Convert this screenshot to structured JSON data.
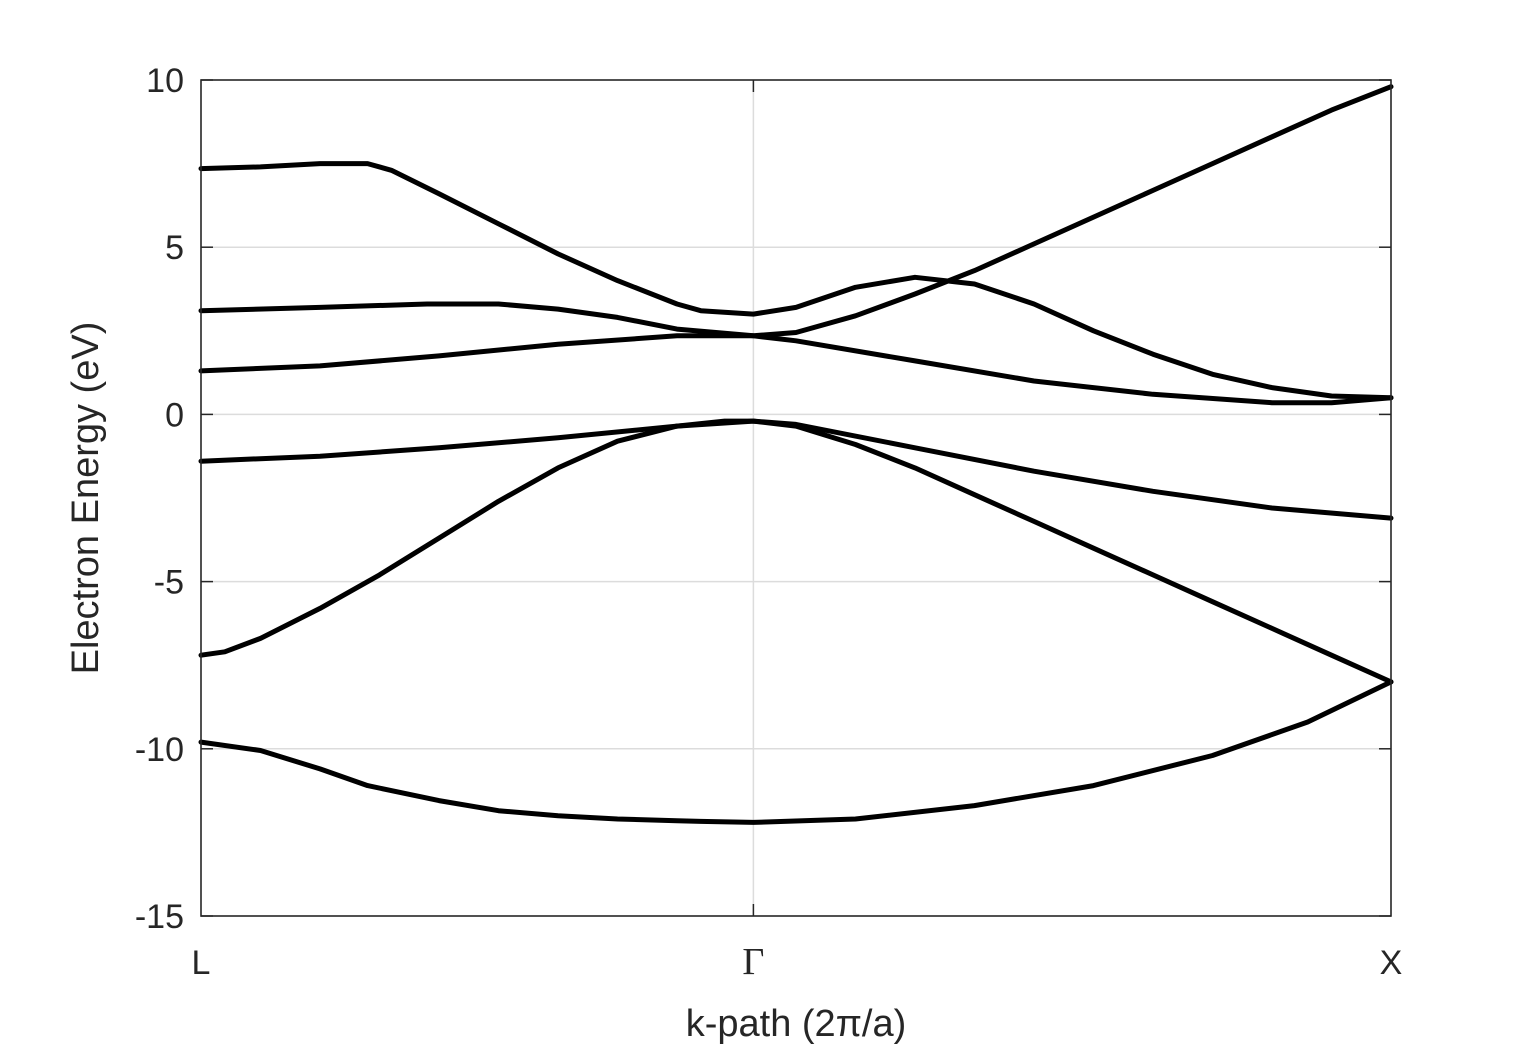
{
  "chart_data": {
    "type": "line",
    "title": "",
    "xlabel": "k-path (2π/a)",
    "ylabel": "Electron Energy (eV)",
    "xlim": [
      0,
      1
    ],
    "ylim": [
      -15,
      10
    ],
    "y_ticks": [
      "10",
      "5",
      "0",
      "-5",
      "-10",
      "-15"
    ],
    "x_ticks": [
      {
        "label": "L",
        "value": 0
      },
      {
        "label": "Γ",
        "value": 0.4642
      },
      {
        "label": "X",
        "value": 1
      }
    ],
    "grid": true,
    "legend": "none",
    "line_color": "#000000",
    "series": [
      {
        "x": [
          0,
          0.05,
          0.1,
          0.14,
          0.2,
          0.25,
          0.3,
          0.35,
          0.4,
          0.42,
          0.4642,
          0.55,
          0.65,
          0.75,
          0.85,
          0.93,
          1.0
        ],
        "y": [
          -9.8,
          -10.05,
          -10.6,
          -11.1,
          -11.55,
          -11.85,
          -12.0,
          -12.1,
          -12.15,
          -12.17,
          -12.2,
          -12.1,
          -11.7,
          -11.1,
          -10.2,
          -9.2,
          -8.0
        ]
      },
      {
        "x": [
          0,
          0.02,
          0.05,
          0.1,
          0.15,
          0.2,
          0.25,
          0.3,
          0.35,
          0.4,
          0.44,
          0.4642,
          0.5,
          0.55,
          0.6,
          0.65,
          0.7,
          0.75,
          0.8,
          0.85,
          0.9,
          0.95,
          1.0
        ],
        "y": [
          -7.2,
          -7.1,
          -6.7,
          -5.8,
          -4.8,
          -3.7,
          -2.6,
          -1.6,
          -0.8,
          -0.35,
          -0.2,
          -0.2,
          -0.35,
          -0.9,
          -1.6,
          -2.4,
          -3.2,
          -4.0,
          -4.8,
          -5.6,
          -6.4,
          -7.2,
          -8.0
        ]
      },
      {
        "x": [
          0,
          0.1,
          0.2,
          0.3,
          0.4,
          0.4642,
          0.5,
          0.6,
          0.7,
          0.8,
          0.9,
          1.0
        ],
        "y": [
          -1.4,
          -1.25,
          -1.0,
          -0.7,
          -0.35,
          -0.2,
          -0.3,
          -1.0,
          -1.7,
          -2.3,
          -2.8,
          -3.1
        ]
      },
      {
        "x": [
          0,
          0.1,
          0.2,
          0.3,
          0.4,
          0.4642,
          0.5,
          0.6,
          0.7,
          0.8,
          0.9,
          0.95,
          1.0
        ],
        "y": [
          1.3,
          1.45,
          1.75,
          2.1,
          2.35,
          2.35,
          2.2,
          1.6,
          1.0,
          0.6,
          0.35,
          0.35,
          0.5
        ]
      },
      {
        "x": [
          0,
          0.1,
          0.19,
          0.25,
          0.3,
          0.35,
          0.4,
          0.4642,
          0.5,
          0.55,
          0.6,
          0.65,
          0.7,
          0.75,
          0.8,
          0.85,
          0.9,
          0.95,
          1.0
        ],
        "y": [
          3.1,
          3.2,
          3.3,
          3.3,
          3.15,
          2.9,
          2.55,
          2.35,
          2.45,
          2.95,
          3.6,
          4.3,
          5.1,
          5.9,
          6.7,
          7.5,
          8.3,
          9.1,
          9.8
        ]
      },
      {
        "x": [
          0,
          0.05,
          0.1,
          0.14,
          0.16,
          0.2,
          0.25,
          0.3,
          0.35,
          0.4,
          0.42,
          0.4642,
          0.5,
          0.55,
          0.6,
          0.65,
          0.7,
          0.75,
          0.8,
          0.85,
          0.9,
          0.95,
          1.0
        ],
        "y": [
          7.35,
          7.4,
          7.5,
          7.5,
          7.3,
          6.6,
          5.7,
          4.8,
          4.0,
          3.3,
          3.1,
          3.0,
          3.2,
          3.8,
          4.1,
          3.9,
          3.3,
          2.5,
          1.8,
          1.2,
          0.8,
          0.55,
          0.5
        ]
      }
    ]
  }
}
